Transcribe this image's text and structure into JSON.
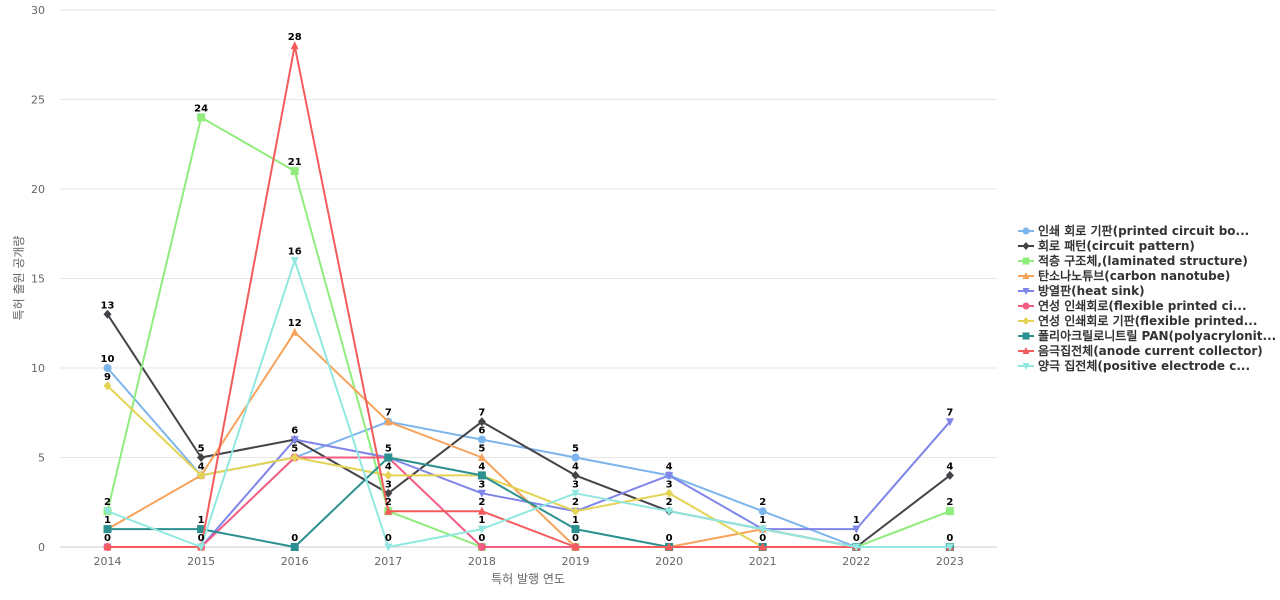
{
  "chart_data": {
    "type": "line",
    "title": "",
    "xlabel": "특허 발행 연도",
    "ylabel": "특허 출원 공개량",
    "ylim": [
      0,
      30
    ],
    "yticks": [
      0,
      5,
      10,
      15,
      20,
      25,
      30
    ],
    "categories": [
      "2014",
      "2015",
      "2016",
      "2017",
      "2018",
      "2019",
      "2020",
      "2021",
      "2022",
      "2023"
    ],
    "grid": true,
    "legend_position": "right",
    "series": [
      {
        "name": "인쇄 회로 기판(printed circuit bo...",
        "color": "#7cb5ec",
        "marker": "circle",
        "values": [
          10,
          4,
          5,
          7,
          6,
          5,
          4,
          2,
          0,
          0
        ]
      },
      {
        "name": "회로 패턴(circuit pattern)",
        "color": "#434348",
        "marker": "diamond",
        "values": [
          13,
          5,
          6,
          3,
          7,
          4,
          2,
          1,
          0,
          4
        ]
      },
      {
        "name": "적층 구조체,(laminated structure)",
        "color": "#90ed7d",
        "marker": "square",
        "values": [
          2,
          24,
          21,
          2,
          0,
          0,
          0,
          0,
          0,
          2
        ]
      },
      {
        "name": "탄소나노튜브(carbon nanotube)",
        "color": "#f7a35c",
        "marker": "triangle",
        "values": [
          1,
          4,
          12,
          7,
          5,
          0,
          0,
          1,
          0,
          0
        ]
      },
      {
        "name": "방열판(heat sink)",
        "color": "#8085e9",
        "marker": "triangle-down",
        "values": [
          0,
          0,
          6,
          5,
          3,
          2,
          4,
          1,
          1,
          7
        ]
      },
      {
        "name": "연성 인쇄회로(flexible printed ci...",
        "color": "#f15c80",
        "marker": "circle",
        "values": [
          0,
          0,
          5,
          5,
          0,
          0,
          0,
          0,
          0,
          0
        ]
      },
      {
        "name": "연성 인쇄회로 기판(flexible printed...",
        "color": "#e4d354",
        "marker": "diamond",
        "values": [
          9,
          4,
          5,
          4,
          4,
          2,
          3,
          0,
          0,
          0
        ]
      },
      {
        "name": "폴리아크릴로니트릴 PAN(polyacrylonit...",
        "color": "#2b908f",
        "marker": "square",
        "values": [
          1,
          1,
          0,
          5,
          4,
          1,
          0,
          0,
          0,
          0
        ]
      },
      {
        "name": "음극집전체(anode current collector)",
        "color": "#f45b5b",
        "marker": "triangle",
        "values": [
          0,
          0,
          28,
          2,
          2,
          0,
          0,
          0,
          0,
          0
        ]
      },
      {
        "name": "양극 집전체(positive electrode c...",
        "color": "#91e8e1",
        "marker": "triangle-down",
        "values": [
          2,
          0,
          16,
          0,
          1,
          3,
          2,
          1,
          0,
          0
        ]
      }
    ],
    "data_labels": [
      {
        "x": "2014",
        "y": 13,
        "text": "13"
      },
      {
        "x": "2014",
        "y": 10,
        "text": "10"
      },
      {
        "x": "2014",
        "y": 9,
        "text": "9"
      },
      {
        "x": "2014",
        "y": 2,
        "text": "2"
      },
      {
        "x": "2014",
        "y": 1,
        "text": "1"
      },
      {
        "x": "2014",
        "y": 0,
        "text": "0"
      },
      {
        "x": "2015",
        "y": 24,
        "text": "24"
      },
      {
        "x": "2015",
        "y": 5,
        "text": "5"
      },
      {
        "x": "2015",
        "y": 4,
        "text": "4"
      },
      {
        "x": "2015",
        "y": 1,
        "text": "1"
      },
      {
        "x": "2015",
        "y": 0,
        "text": "0"
      },
      {
        "x": "2016",
        "y": 28,
        "text": "28"
      },
      {
        "x": "2016",
        "y": 21,
        "text": "21"
      },
      {
        "x": "2016",
        "y": 16,
        "text": "16"
      },
      {
        "x": "2016",
        "y": 12,
        "text": "12"
      },
      {
        "x": "2016",
        "y": 6,
        "text": "6"
      },
      {
        "x": "2016",
        "y": 5,
        "text": "5"
      },
      {
        "x": "2016",
        "y": 0,
        "text": "0"
      },
      {
        "x": "2017",
        "y": 7,
        "text": "7"
      },
      {
        "x": "2017",
        "y": 5,
        "text": "5"
      },
      {
        "x": "2017",
        "y": 4,
        "text": "4"
      },
      {
        "x": "2017",
        "y": 3,
        "text": "3"
      },
      {
        "x": "2017",
        "y": 2,
        "text": "2"
      },
      {
        "x": "2017",
        "y": 0,
        "text": "0"
      },
      {
        "x": "2018",
        "y": 7,
        "text": "7"
      },
      {
        "x": "2018",
        "y": 6,
        "text": "6"
      },
      {
        "x": "2018",
        "y": 5,
        "text": "5"
      },
      {
        "x": "2018",
        "y": 4,
        "text": "4"
      },
      {
        "x": "2018",
        "y": 3,
        "text": "3"
      },
      {
        "x": "2018",
        "y": 2,
        "text": "2"
      },
      {
        "x": "2018",
        "y": 1,
        "text": "1"
      },
      {
        "x": "2018",
        "y": 0,
        "text": "0"
      },
      {
        "x": "2019",
        "y": 5,
        "text": "5"
      },
      {
        "x": "2019",
        "y": 4,
        "text": "4"
      },
      {
        "x": "2019",
        "y": 3,
        "text": "3"
      },
      {
        "x": "2019",
        "y": 2,
        "text": "2"
      },
      {
        "x": "2019",
        "y": 1,
        "text": "1"
      },
      {
        "x": "2019",
        "y": 0,
        "text": "0"
      },
      {
        "x": "2020",
        "y": 4,
        "text": "4"
      },
      {
        "x": "2020",
        "y": 3,
        "text": "3"
      },
      {
        "x": "2020",
        "y": 2,
        "text": "2"
      },
      {
        "x": "2020",
        "y": 0,
        "text": "0"
      },
      {
        "x": "2021",
        "y": 2,
        "text": "2"
      },
      {
        "x": "2021",
        "y": 1,
        "text": "1"
      },
      {
        "x": "2021",
        "y": 0,
        "text": "0"
      },
      {
        "x": "2022",
        "y": 1,
        "text": "1"
      },
      {
        "x": "2022",
        "y": 0,
        "text": "0"
      },
      {
        "x": "2023",
        "y": 7,
        "text": "7"
      },
      {
        "x": "2023",
        "y": 4,
        "text": "4"
      },
      {
        "x": "2023",
        "y": 2,
        "text": "2"
      },
      {
        "x": "2023",
        "y": 0,
        "text": "0"
      }
    ]
  }
}
